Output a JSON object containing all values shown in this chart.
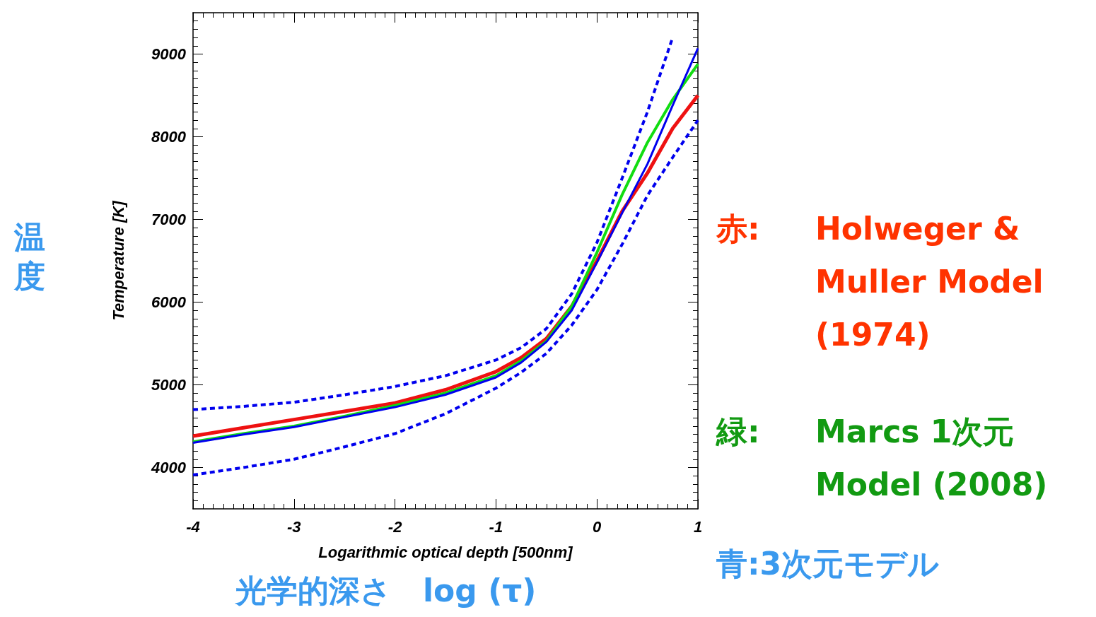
{
  "chart_data": {
    "type": "line",
    "xlabel": "Logarithmic optical depth [500nm]",
    "ylabel": "Temperature [K]",
    "xlim": [
      -4,
      1
    ],
    "xticks": [
      -4,
      -3,
      -2,
      -1,
      0,
      1
    ],
    "ylim": [
      3500,
      9500
    ],
    "yticks": [
      4000,
      5000,
      6000,
      7000,
      8000,
      9000
    ],
    "marker": "none",
    "line_style": "solid",
    "x": [
      -4,
      -3.5,
      -3,
      -2.5,
      -2,
      -1.5,
      -1,
      -0.75,
      -0.5,
      -0.25,
      0,
      0.25,
      0.5,
      0.75,
      1
    ],
    "series": [
      {
        "color": "#0000ee",
        "line_style": "dashed",
        "values": [
          4700,
          4740,
          4790,
          4880,
          4980,
          5110,
          5300,
          5450,
          5680,
          6100,
          6720,
          7500,
          8300,
          9200,
          null
        ]
      },
      {
        "color": "#0000ee",
        "line_style": "dashed",
        "values": [
          3910,
          4000,
          4100,
          4250,
          4410,
          4650,
          4960,
          5150,
          5380,
          5720,
          6150,
          6700,
          7290,
          7750,
          8200
        ]
      },
      {
        "color": "#ee1111",
        "values": [
          4380,
          4480,
          4580,
          4680,
          4780,
          4940,
          5160,
          5330,
          5560,
          5950,
          6500,
          7100,
          7560,
          8100,
          8500
        ]
      },
      {
        "color": "#11dd11",
        "values": [
          4310,
          4410,
          4500,
          4620,
          4750,
          4900,
          5110,
          5290,
          5530,
          5950,
          6600,
          7300,
          7930,
          8450,
          8880
        ]
      },
      {
        "color": "#0000ee",
        "values": [
          4300,
          4400,
          4490,
          4610,
          4730,
          4880,
          5090,
          5270,
          5520,
          5900,
          6480,
          7080,
          7670,
          8380,
          9070
        ]
      }
    ],
    "annotations": [
      "温度",
      "光学的深さ　log (τ)",
      "赤:　Holweger & Muller Model (1974)",
      "緑:　Marcs 1次元 Model (2008)",
      "青:3次元モデル"
    ]
  }
}
